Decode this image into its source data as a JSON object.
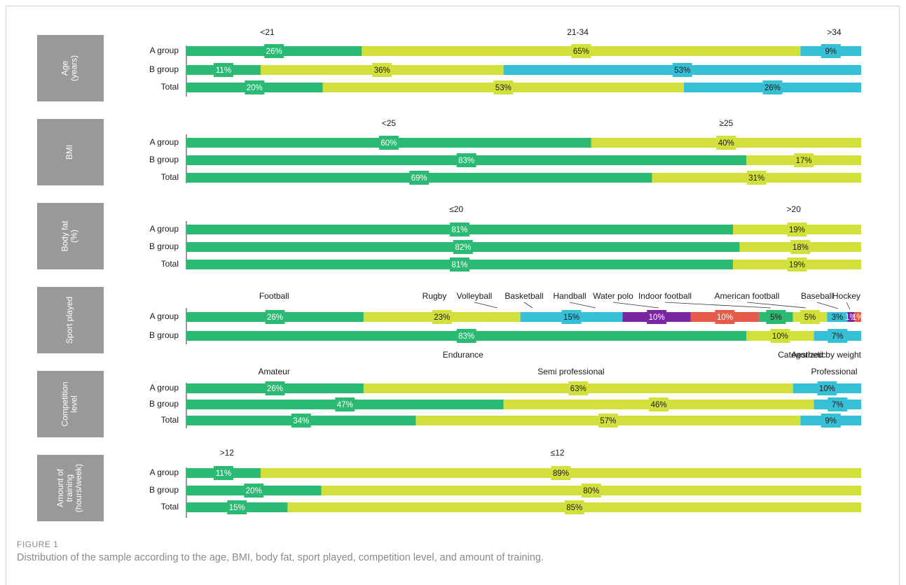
{
  "figure": {
    "label": "FIGURE 1",
    "caption": "Distribution of the sample according to the age, BMI, body fat, sport played, competition level, and amount of training."
  },
  "colors": {
    "c1": "#2bba73",
    "c2": "#d3e03b",
    "c3": "#35c0d6",
    "c4": "#7a26a1",
    "c5": "#e55a48",
    "panel": "#999999",
    "text": "#1a1a1a",
    "white_label": "#ffffff"
  },
  "chart_data": [
    {
      "type": "bar",
      "stacked": "horizontal-100%",
      "panel_title": "Age\n(years)",
      "categories": [
        "A group",
        "B group",
        "Total"
      ],
      "series": [
        {
          "name": "<21",
          "values": [
            26,
            11,
            20
          ]
        },
        {
          "name": "21-34",
          "values": [
            65,
            36,
            53
          ]
        },
        {
          "name": ">34",
          "values": [
            9,
            53,
            26
          ]
        }
      ],
      "series_label_positions_pct": [
        12,
        58,
        96
      ],
      "xlim": [
        0,
        100
      ]
    },
    {
      "type": "bar",
      "stacked": "horizontal-100%",
      "panel_title": "BMI",
      "categories": [
        "A group",
        "B group",
        "Total"
      ],
      "series": [
        {
          "name": "<25",
          "values": [
            60,
            83,
            69
          ]
        },
        {
          "name": "≥25",
          "values": [
            40,
            17,
            31
          ]
        }
      ],
      "series_label_positions_pct": [
        30,
        80
      ],
      "xlim": [
        0,
        100
      ]
    },
    {
      "type": "bar",
      "stacked": "horizontal-100%",
      "panel_title": "Body fat\n(%)",
      "categories": [
        "A group",
        "B group",
        "Total"
      ],
      "series": [
        {
          "name": "≤20",
          "values": [
            81,
            82,
            81
          ]
        },
        {
          "name": ">20",
          "values": [
            19,
            18,
            19
          ]
        }
      ],
      "series_label_positions_pct": [
        40,
        90
      ],
      "xlim": [
        0,
        100
      ]
    },
    {
      "type": "bar",
      "stacked": "horizontal-100%",
      "panel_title": "Sport played",
      "categories": [
        "A group",
        "B group"
      ],
      "series": [
        {
          "name": "Football",
          "values": [
            26,
            83
          ]
        },
        {
          "name": "Rugby",
          "values": [
            23,
            0
          ]
        },
        {
          "name": "Volleyball",
          "values": [
            15,
            0
          ]
        },
        {
          "name": "Basketball",
          "values": [
            10,
            0
          ]
        },
        {
          "name": "Handball",
          "values": [
            10,
            0
          ]
        },
        {
          "name": "Water polo",
          "values": [
            5,
            0
          ]
        },
        {
          "name": "Indoor football",
          "values": [
            5,
            0
          ]
        },
        {
          "name": "American football",
          "values": [
            3,
            0
          ]
        },
        {
          "name": "Baseball",
          "values": [
            1,
            0
          ]
        },
        {
          "name": "Hockey",
          "values": [
            1,
            0
          ]
        }
      ],
      "b_group_series": [
        {
          "name": "Endurance",
          "values": [
            10
          ]
        },
        {
          "name": "Aesthetic",
          "values": [
            7
          ]
        },
        {
          "name": "Categorized by weight",
          "values": [
            0
          ]
        }
      ],
      "a_group_value_labels": [
        "26%",
        "23%",
        "15%",
        "10%",
        "10%",
        "5%",
        "5%",
        "3%",
        "1%",
        "1%"
      ],
      "b_group_value_labels": [
        "83%",
        "10%",
        "7%"
      ],
      "legend_top": [
        "Rugby",
        "Volleyball",
        "Basketball",
        "Handball",
        "Water polo",
        "Indoor football",
        "American football",
        "Baseball",
        "Hockey"
      ],
      "legend_top_lead": "Football",
      "legend_bottom": [
        "Endurance",
        "Aesthetic",
        "Categorized by weight"
      ],
      "xlim": [
        0,
        100
      ]
    },
    {
      "type": "bar",
      "stacked": "horizontal-100%",
      "panel_title": "Competition\nlevel",
      "categories": [
        "A group",
        "B group",
        "Total"
      ],
      "series": [
        {
          "name": "Amateur",
          "values": [
            26,
            47,
            34
          ]
        },
        {
          "name": "Semi professional",
          "values": [
            63,
            46,
            57
          ]
        },
        {
          "name": "Professional",
          "values": [
            10,
            7,
            9
          ]
        }
      ],
      "series_label_positions_pct": [
        13,
        57,
        96
      ],
      "xlim": [
        0,
        100
      ]
    },
    {
      "type": "bar",
      "stacked": "horizontal-100%",
      "panel_title": "Amount of\ntraining\n(hours/week)",
      "categories": [
        "A group",
        "B group",
        "Total"
      ],
      "series": [
        {
          "name": ">12",
          "values": [
            11,
            20,
            15
          ]
        },
        {
          "name": "≤12",
          "values": [
            89,
            80,
            85
          ]
        }
      ],
      "series_label_positions_pct": [
        6,
        55
      ],
      "xlim": [
        0,
        100
      ]
    }
  ]
}
